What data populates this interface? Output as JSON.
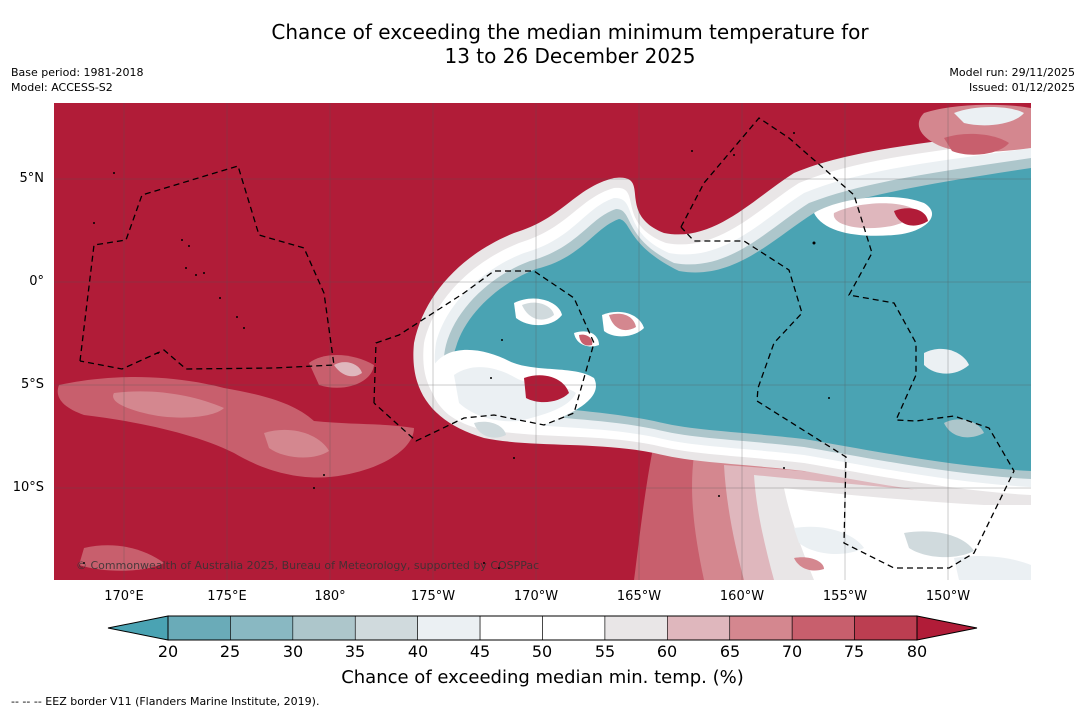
{
  "title_line1": "Chance of exceeding the median minimum temperature for",
  "title_line2": "13 to 26 December 2025",
  "meta": {
    "base_period": "Base period: 1981-2018",
    "model": "Model: ACCESS-S2",
    "model_run": "Model run: 29/11/2025",
    "issued": "Issued: 01/12/2025"
  },
  "map": {
    "copyright": "© Commonwealth of Australia 2025, Bureau of Meteorology, supported by COSPPac",
    "lat_labels": [
      "5°N",
      "0°",
      "5°S",
      "10°S"
    ],
    "lon_labels": [
      "170°E",
      "175°E",
      "180°",
      "175°W",
      "170°W",
      "165°W",
      "160°W",
      "155°W",
      "150°W"
    ]
  },
  "colorbar": {
    "ticks": [
      "20",
      "25",
      "30",
      "35",
      "40",
      "45",
      "50",
      "55",
      "60",
      "65",
      "70",
      "75",
      "80"
    ],
    "colors": {
      "below": "#4aa3b3",
      "c20_25": "#6aabb8",
      "c25_30": "#89b8c2",
      "c30_35": "#adc6cb",
      "c35_40": "#d0dadd",
      "c40_45": "#ebf0f3",
      "c45_50": "#ffffff",
      "c50_55": "#ffffff",
      "c55_60": "#e9e6e7",
      "c60_65": "#dfb7bd",
      "c65_70": "#d4878f",
      "c70_75": "#c85f6d",
      "c75_80": "#bc3e51",
      "above": "#b11c38"
    },
    "title": "Chance of exceeding median min. temp. (%)"
  },
  "footnote": "--  --  -- EEZ border V11 (Flanders Marine Institute, 2019)."
}
